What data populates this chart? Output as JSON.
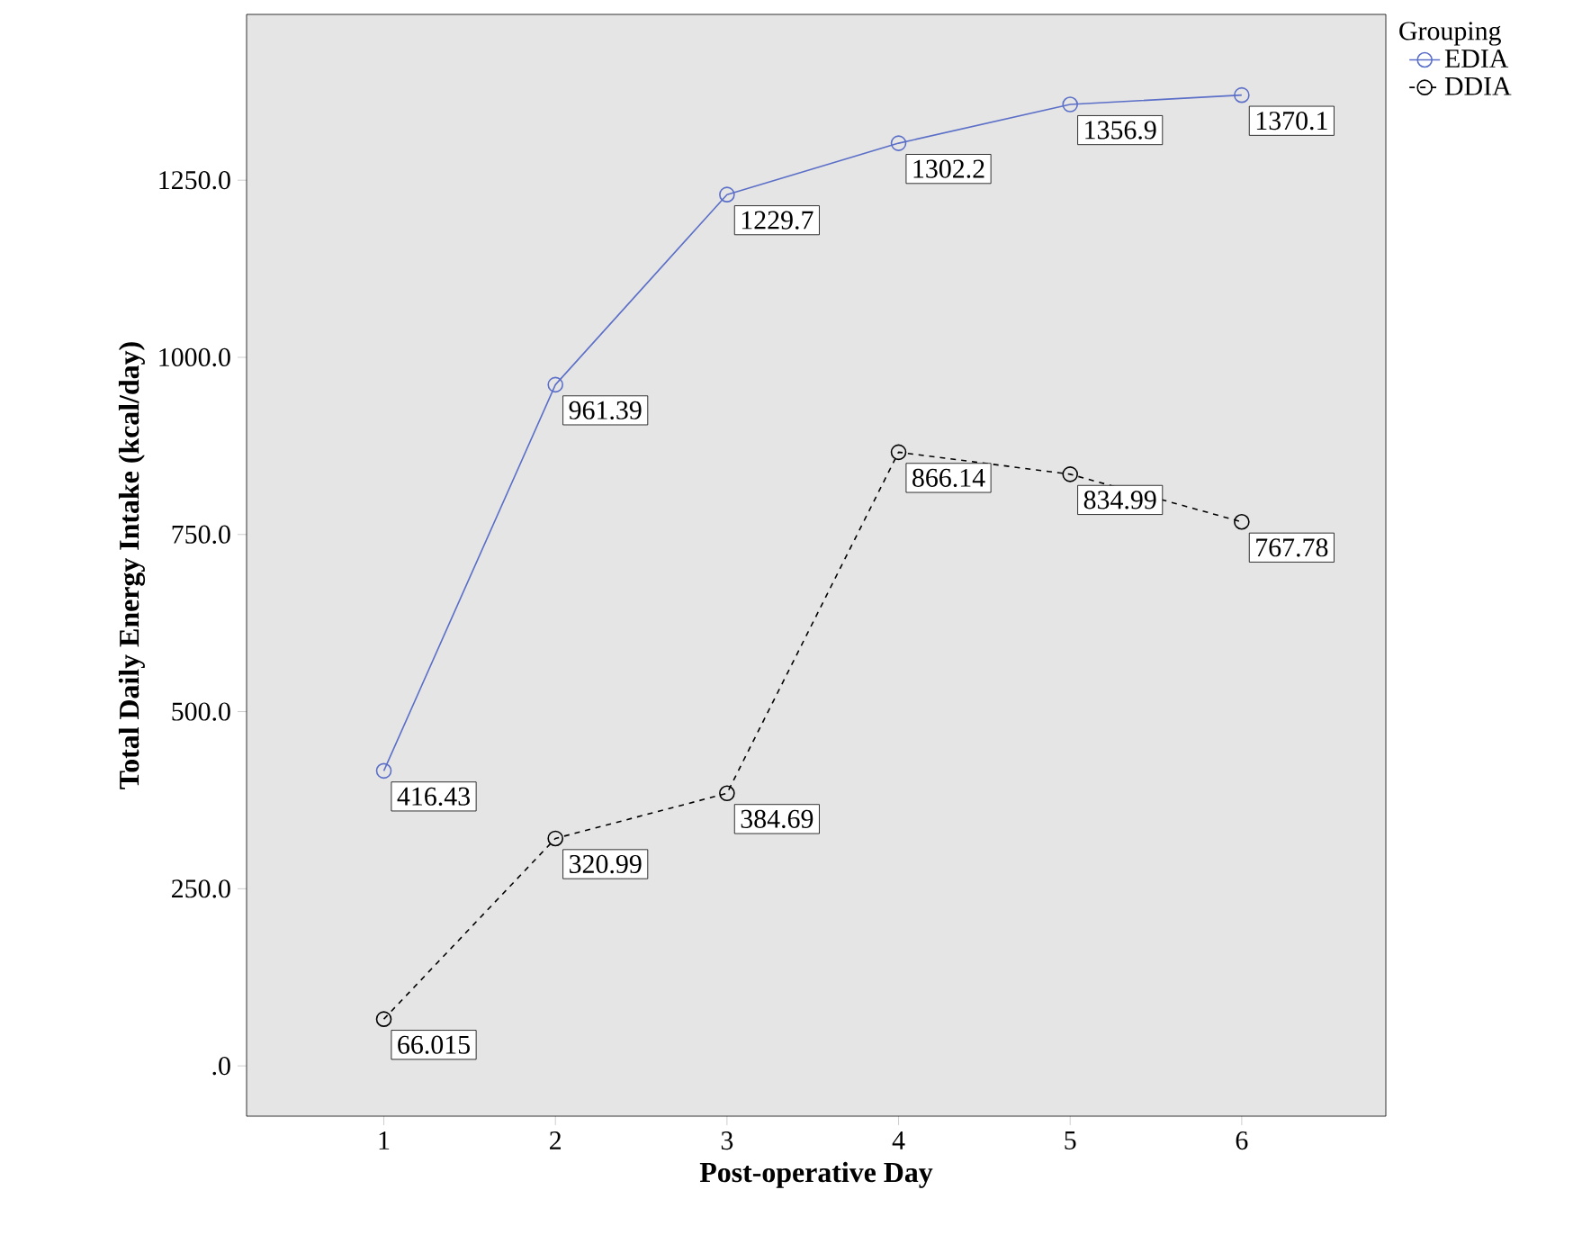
{
  "chart_data": {
    "type": "line",
    "xlabel": "Post-operative Day",
    "ylabel": "Total Daily Energy Intake (kcal/day)",
    "legend_title": "Grouping",
    "categories": [
      "1",
      "2",
      "3",
      "4",
      "5",
      "6"
    ],
    "series": [
      {
        "name": "EDIA",
        "color": "#5b6fc8",
        "line_style": "solid",
        "values": [
          416.43,
          961.39,
          1229.7,
          1302.2,
          1356.9,
          1370.1
        ]
      },
      {
        "name": "DDIA",
        "color": "#000000",
        "line_style": "dashed",
        "values": [
          66.015,
          320.99,
          384.69,
          866.14,
          834.99,
          767.78
        ]
      }
    ],
    "ylim": [
      -71,
      1484
    ],
    "yticks": [
      {
        "value": 0,
        "label": ".0"
      },
      {
        "value": 250,
        "label": "250.0"
      },
      {
        "value": 500,
        "label": "500.0"
      },
      {
        "value": 750,
        "label": "750.0"
      },
      {
        "value": 1000,
        "label": "1000.0"
      },
      {
        "value": 1250,
        "label": "1250.0"
      }
    ],
    "marker": "circle",
    "data_labels": true,
    "legend": "right",
    "grid": false
  }
}
